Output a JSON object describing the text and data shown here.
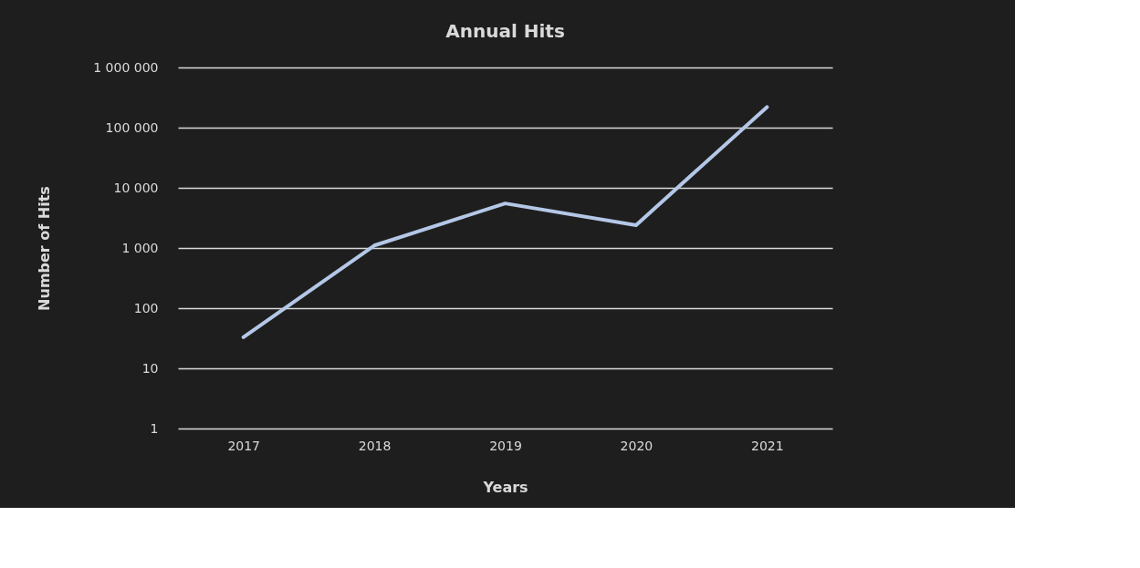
{
  "chart_data": {
    "type": "line",
    "title": "Annual Hits",
    "xlabel": "Years",
    "ylabel": "Number of Hits",
    "categories": [
      "2017",
      "2018",
      "2019",
      "2020",
      "2021"
    ],
    "series": [
      {
        "color": "#b4c7e7",
        "values": [
          33,
          1100,
          5500,
          2400,
          220000
        ]
      }
    ],
    "log": "y",
    "ylim": [
      1,
      1000000
    ],
    "yticks": [
      1,
      10,
      100,
      {
        "value": 1000,
        "label": "1 000"
      },
      {
        "value": 10000,
        "label": "10 000"
      },
      {
        "value": 100000,
        "label": "100 000"
      },
      {
        "value": 1000000,
        "label": "1 000 000"
      }
    ],
    "grid": "y",
    "marker": "none",
    "line_style": "solid"
  }
}
